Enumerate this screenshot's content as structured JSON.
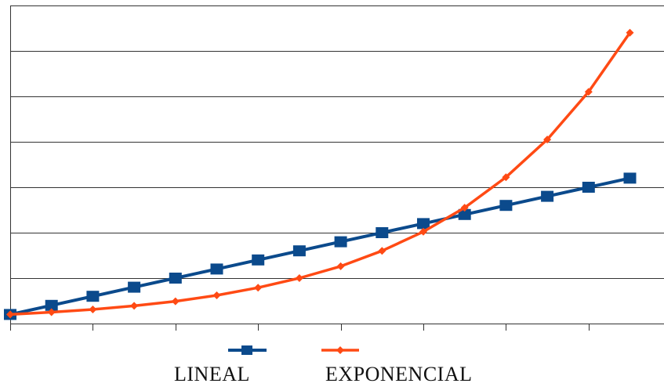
{
  "chart_data": {
    "type": "line",
    "title": "",
    "xlabel": "",
    "ylabel": "",
    "x": [
      0,
      1,
      2,
      3,
      4,
      5,
      6,
      7,
      8,
      9,
      10,
      11,
      12,
      13,
      14,
      15
    ],
    "xlim": [
      0,
      16
    ],
    "ylim": [
      0,
      7
    ],
    "grid": "horizontal",
    "legend": "bottom",
    "series": [
      {
        "name": "LINEAL",
        "color": "#0b4a8c",
        "marker": "square",
        "values": [
          0.2,
          0.4,
          0.6,
          0.8,
          1.0,
          1.2,
          1.4,
          1.6,
          1.8,
          2.0,
          2.2,
          2.4,
          2.6,
          2.8,
          3.0,
          3.2
        ]
      },
      {
        "name": "EXPONENCIAL",
        "color": "#ff4a14",
        "marker": "diamond",
        "values": [
          0.2,
          0.25,
          0.31,
          0.39,
          0.49,
          0.62,
          0.79,
          1.0,
          1.26,
          1.6,
          2.02,
          2.55,
          3.22,
          4.05,
          5.1,
          6.4
        ]
      }
    ]
  }
}
